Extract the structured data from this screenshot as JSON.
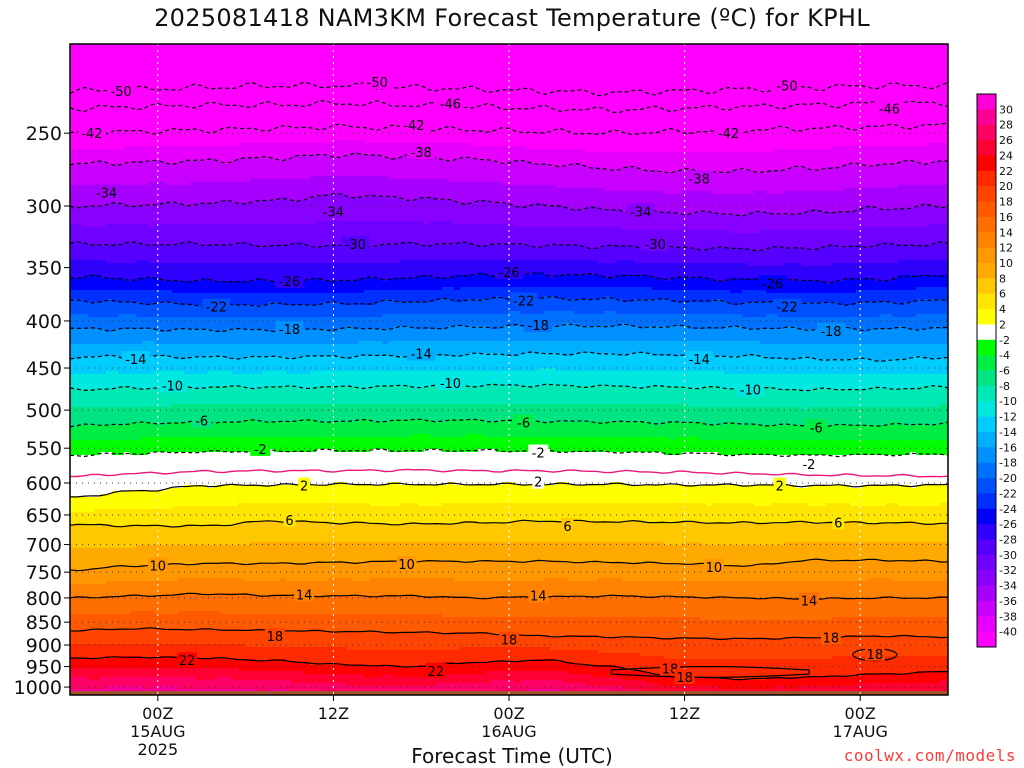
{
  "title": "2025081418 NAM3KM Forecast Temperature (ºC) for KPHL",
  "credit": "coolwx.com/models",
  "chart_data": {
    "type": "heatmap",
    "title": "2025081418 NAM3KM Forecast Temperature (ºC) for KPHL",
    "xlabel": "Forecast Time (UTC)",
    "ylabel": "",
    "y_scale": "log",
    "ylim": [
      1020,
      200
    ],
    "xlim": [
      -6,
      54
    ],
    "x_ticks": [
      {
        "x": 0,
        "label": "00Z",
        "sub": [
          "15AUG",
          "2025"
        ]
      },
      {
        "x": 12,
        "label": "12Z",
        "sub": []
      },
      {
        "x": 24,
        "label": "00Z",
        "sub": [
          "16AUG"
        ]
      },
      {
        "x": 36,
        "label": "12Z",
        "sub": []
      },
      {
        "x": 48,
        "label": "00Z",
        "sub": [
          "17AUG"
        ]
      }
    ],
    "y_ticks": [
      1000,
      950,
      900,
      850,
      800,
      750,
      700,
      650,
      600,
      550,
      500,
      450,
      400,
      350,
      300,
      250
    ],
    "grid": "dotted",
    "colorbar": {
      "position": "right",
      "labels": [
        "30",
        "28",
        "26",
        "24",
        "22",
        "20",
        "18",
        "16",
        "14",
        "12",
        "10",
        "8",
        "6",
        "4",
        "2",
        "-2",
        "-4",
        "-6",
        "-8",
        "-10",
        "-12",
        "-14",
        "-16",
        "-18",
        "-20",
        "-22",
        "-24",
        "-26",
        "-28",
        "-30",
        "-32",
        "-34",
        "-36",
        "-38",
        "-40"
      ],
      "colors": [
        "#ff00d8",
        "#ff0096",
        "#ff0064",
        "#ff0032",
        "#ff0000",
        "#ff2a00",
        "#ff4400",
        "#ff5a00",
        "#ff6e00",
        "#ff8200",
        "#ff9800",
        "#ffaa00",
        "#ffc800",
        "#ffe600",
        "#ffff00",
        "#ffffff",
        "#00ff00",
        "#00ee44",
        "#00e484",
        "#00e8b4",
        "#00e8e0",
        "#00ccff",
        "#00b0ff",
        "#0090ff",
        "#0070ff",
        "#0050ff",
        "#0030ff",
        "#0000ff",
        "#3000ff",
        "#5500ff",
        "#7000ff",
        "#8800ff",
        "#a800ff",
        "#c800ff",
        "#e800ff",
        "#ff00ff"
      ]
    },
    "contours": [
      {
        "level": -50,
        "p": [
          225,
          224,
          223,
          222,
          222,
          223,
          224,
          225,
          226,
          225,
          224,
          223,
          222,
          222
        ],
        "labels": [
          {
            "x": -2.5,
            "p": 225
          },
          {
            "x": 15,
            "p": 220
          },
          {
            "x": 43,
            "p": 222
          }
        ]
      },
      {
        "level": -46,
        "p": [
          235,
          234,
          233,
          233,
          232,
          233,
          234,
          235,
          236,
          235,
          234,
          233,
          232,
          232
        ],
        "labels": [
          {
            "x": 20,
            "p": 232
          },
          {
            "x": 50,
            "p": 235
          }
        ]
      },
      {
        "level": -42,
        "p": [
          250,
          249,
          248,
          247,
          246,
          247,
          248,
          249,
          250,
          249,
          248,
          247,
          246,
          245
        ],
        "labels": [
          {
            "x": -4.5,
            "p": 250
          },
          {
            "x": 17.5,
            "p": 245
          },
          {
            "x": 39,
            "p": 250
          }
        ]
      },
      {
        "level": -38,
        "p": [
          270,
          269,
          268,
          266,
          264,
          265,
          267,
          270,
          273,
          275,
          275,
          273,
          270,
          268
        ],
        "labels": [
          {
            "x": 18,
            "p": 262
          },
          {
            "x": 37,
            "p": 280
          }
        ]
      },
      {
        "level": -34,
        "p": [
          300,
          299,
          298,
          296,
          292,
          294,
          297,
          300,
          303,
          305,
          306,
          305,
          302,
          300
        ],
        "labels": [
          {
            "x": -3.5,
            "p": 290
          },
          {
            "x": 12,
            "p": 304
          },
          {
            "x": 33,
            "p": 304
          }
        ]
      },
      {
        "level": -30,
        "p": [
          330,
          330,
          330,
          331,
          331,
          330,
          330,
          331,
          332,
          333,
          334,
          333,
          331,
          330
        ],
        "labels": [
          {
            "x": 13.5,
            "p": 330
          },
          {
            "x": 34,
            "p": 330
          }
        ]
      },
      {
        "level": -26,
        "p": [
          358,
          360,
          362,
          362,
          361,
          359,
          357,
          356,
          357,
          359,
          361,
          362,
          360,
          356
        ],
        "labels": [
          {
            "x": 9,
            "p": 362
          },
          {
            "x": 24,
            "p": 354
          },
          {
            "x": 42,
            "p": 364
          }
        ]
      },
      {
        "level": -22,
        "p": [
          380,
          382,
          384,
          384,
          383,
          381,
          379,
          378,
          379,
          380,
          382,
          383,
          382,
          380
        ],
        "labels": [
          {
            "x": 4,
            "p": 386
          },
          {
            "x": 25,
            "p": 380
          },
          {
            "x": 43,
            "p": 386
          }
        ]
      },
      {
        "level": -18,
        "p": [
          408,
          408,
          409,
          409,
          408,
          407,
          406,
          405,
          405,
          406,
          407,
          408,
          408,
          407
        ],
        "labels": [
          {
            "x": 9,
            "p": 408
          },
          {
            "x": 26,
            "p": 404
          },
          {
            "x": 46,
            "p": 410
          }
        ]
      },
      {
        "level": -14,
        "p": [
          438,
          437,
          438,
          438,
          437,
          436,
          435,
          434,
          434,
          435,
          437,
          440,
          441,
          438
        ],
        "labels": [
          {
            "x": -1.5,
            "p": 440
          },
          {
            "x": 18,
            "p": 434
          },
          {
            "x": 37,
            "p": 440
          }
        ]
      },
      {
        "level": -10,
        "p": [
          475,
          473,
          472,
          472,
          472,
          471,
          470,
          470,
          471,
          472,
          474,
          475,
          474,
          472
        ],
        "labels": [
          {
            "x": 1,
            "p": 470
          },
          {
            "x": 20,
            "p": 467
          },
          {
            "x": 40.5,
            "p": 475
          }
        ]
      },
      {
        "level": -6,
        "p": [
          520,
          517,
          515,
          514,
          514,
          513,
          513,
          514,
          515,
          516,
          518,
          520,
          519,
          517
        ],
        "labels": [
          {
            "x": 3,
            "p": 513
          },
          {
            "x": 25,
            "p": 516
          },
          {
            "x": 45,
            "p": 522
          }
        ]
      },
      {
        "level": -2,
        "p": [
          560,
          557,
          555,
          554,
          553,
          553,
          553,
          554,
          555,
          557,
          559,
          560,
          559,
          558
        ],
        "labels": [
          {
            "x": 7,
            "p": 551
          },
          {
            "x": 26,
            "p": 556
          },
          {
            "x": 44.5,
            "p": 572
          }
        ]
      },
      {
        "level": 0,
        "p": [
          590,
          586,
          583,
          582,
          582,
          581,
          582,
          582,
          583,
          584,
          586,
          588,
          589,
          590
        ],
        "labels": []
      },
      {
        "level": 2,
        "p": [
          622,
          612,
          604,
          603,
          602,
          602,
          602,
          602,
          602,
          603,
          603,
          604,
          604,
          603
        ],
        "labels": [
          {
            "x": 10,
            "p": 604
          },
          {
            "x": 26,
            "p": 598
          },
          {
            "x": 42.5,
            "p": 604
          }
        ]
      },
      {
        "level": 6,
        "p": [
          666,
          668,
          668,
          660,
          663,
          665,
          663,
          660,
          661,
          662,
          663,
          662,
          663,
          664
        ],
        "labels": [
          {
            "x": 9,
            "p": 658
          },
          {
            "x": 28,
            "p": 668
          },
          {
            "x": 46.5,
            "p": 662
          }
        ]
      },
      {
        "level": 10,
        "p": [
          746,
          738,
          734,
          734,
          732,
          730,
          730,
          730,
          732,
          734,
          738,
          728,
          728,
          730
        ],
        "labels": [
          {
            "x": 0,
            "p": 738
          },
          {
            "x": 17,
            "p": 735
          },
          {
            "x": 38,
            "p": 740
          }
        ]
      },
      {
        "level": 14,
        "p": [
          800,
          796,
          792,
          795,
          796,
          796,
          800,
          798,
          796,
          798,
          800,
          802,
          800,
          800
        ],
        "labels": [
          {
            "x": 10,
            "p": 793
          },
          {
            "x": 26,
            "p": 795
          },
          {
            "x": 44.5,
            "p": 805
          }
        ]
      },
      {
        "level": 18,
        "p": [
          868,
          864,
          866,
          868,
          870,
          872,
          874,
          880,
          882,
          885,
          886,
          884,
          880,
          882
        ],
        "labels": [
          {
            "x": 8,
            "p": 880
          },
          {
            "x": 24,
            "p": 888
          },
          {
            "x": 46,
            "p": 883
          }
        ]
      },
      {
        "level": 22,
        "p": [
          930,
          928,
          930,
          936,
          945,
          950,
          940,
          935,
          950,
          975,
          980,
          975,
          968,
          962
        ],
        "labels": [
          {
            "x": 2,
            "p": 935
          },
          {
            "x": 19,
            "p": 960
          }
        ]
      }
    ],
    "closed_contours": [
      {
        "level": 18,
        "label_points": [
          {
            "x": 35,
            "p": 955
          },
          {
            "x": 36,
            "p": 975
          }
        ]
      },
      {
        "level": 18,
        "label_points": [
          {
            "x": 49,
            "p": 920
          }
        ]
      }
    ],
    "ground": {
      "color": "#a0522d"
    }
  }
}
